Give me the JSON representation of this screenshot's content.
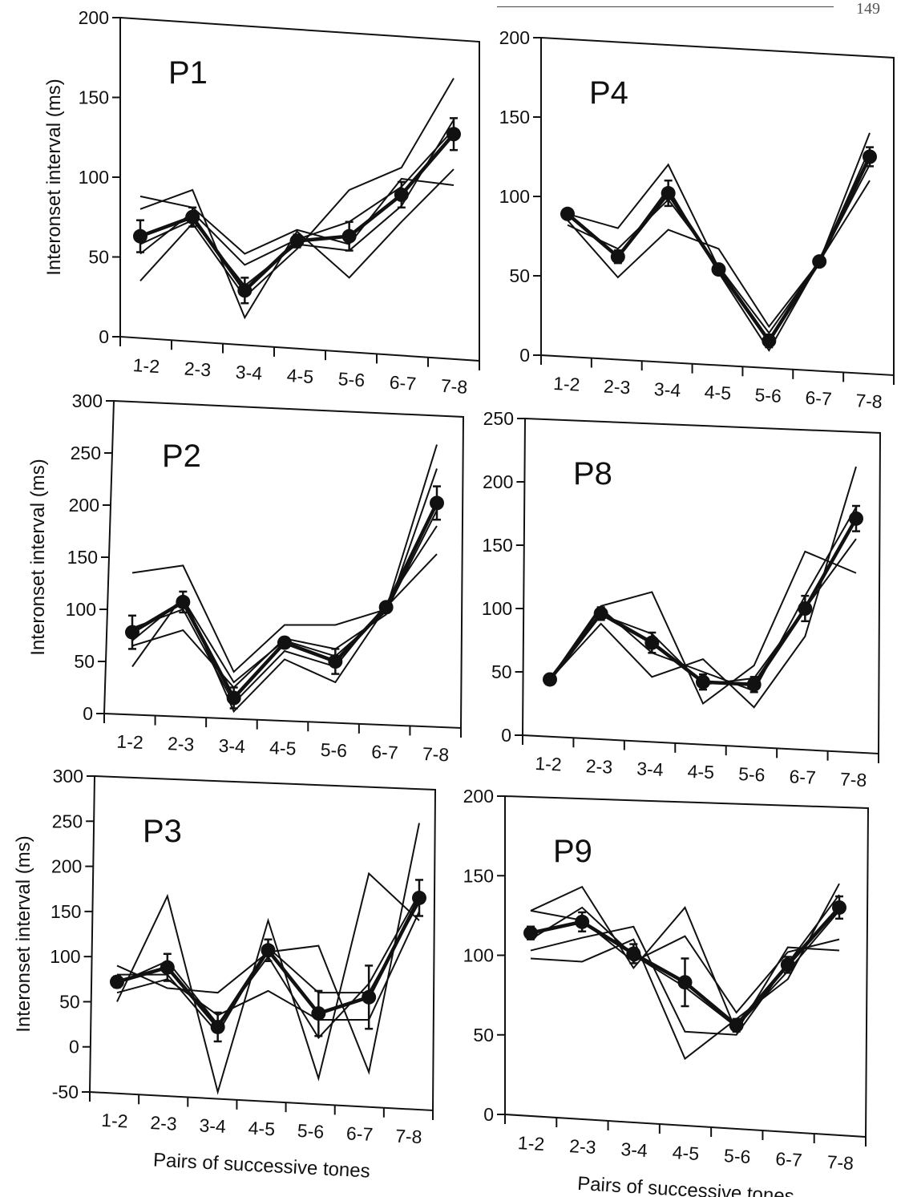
{
  "page_number": "149",
  "colors": {
    "ink": "#111111",
    "background": "#ffffff"
  },
  "chart_data": [
    {
      "type": "line",
      "panel": "P1",
      "ylabel": "Interonset interval (ms)",
      "xlabel": "",
      "categories": [
        "1-2",
        "2-3",
        "3-4",
        "4-5",
        "5-6",
        "6-7",
        "7-8"
      ],
      "ylim": [
        0,
        200
      ],
      "yticks": [
        0,
        50,
        100,
        150,
        200
      ],
      "mean": [
        63,
        75,
        29,
        60,
        63,
        89,
        127
      ],
      "error": [
        10,
        6,
        8,
        4,
        9,
        8,
        10
      ],
      "series": [
        {
          "values": [
            88,
            81,
            52,
            67,
            58,
            99,
            95
          ]
        },
        {
          "values": [
            80,
            92,
            12,
            66,
            37,
            72,
            105
          ]
        },
        {
          "values": [
            52,
            78,
            45,
            61,
            72,
            94,
            130
          ]
        },
        {
          "values": [
            35,
            71,
            25,
            55,
            92,
            106,
            162
          ]
        },
        {
          "values": [
            58,
            73,
            32,
            58,
            54,
            82,
            136
          ]
        }
      ]
    },
    {
      "type": "line",
      "panel": "P4",
      "ylabel": "",
      "xlabel": "",
      "categories": [
        "1-2",
        "2-3",
        "3-4",
        "4-5",
        "5-6",
        "6-7",
        "7-8"
      ],
      "ylim": [
        0,
        200
      ],
      "yticks": [
        0,
        50,
        100,
        150,
        200
      ],
      "mean": [
        89,
        62,
        102,
        54,
        9,
        59,
        125
      ],
      "error": [
        2,
        4,
        8,
        3,
        4,
        2,
        6
      ],
      "series": [
        {
          "values": [
            89,
            80,
            120,
            55,
            10,
            59,
            140
          ]
        },
        {
          "values": [
            85,
            49,
            79,
            67,
            18,
            59,
            110
          ]
        },
        {
          "values": [
            89,
            62,
            105,
            52,
            3,
            59,
            130
          ]
        },
        {
          "values": [
            82,
            67,
            98,
            56,
            14,
            59,
            120
          ]
        }
      ]
    },
    {
      "type": "line",
      "panel": "P2",
      "ylabel": "Interonset interval (ms)",
      "xlabel": "",
      "categories": [
        "1-2",
        "2-3",
        "3-4",
        "4-5",
        "5-6",
        "6-7",
        "7-8"
      ],
      "ylim": [
        0,
        300
      ],
      "yticks": [
        0,
        50,
        100,
        150,
        200,
        250,
        300
      ],
      "mean": [
        78,
        107,
        15,
        68,
        50,
        102,
        202
      ],
      "error": [
        16,
        10,
        10,
        5,
        12,
        5,
        16
      ],
      "series": [
        {
          "values": [
            135,
            142,
            40,
            85,
            85,
            100,
            258
          ]
        },
        {
          "values": [
            45,
            113,
            2,
            52,
            30,
            102,
            153
          ]
        },
        {
          "values": [
            65,
            80,
            25,
            72,
            62,
            95,
            235
          ]
        },
        {
          "values": [
            82,
            100,
            10,
            60,
            45,
            105,
            180
          ]
        },
        {
          "values": [
            70,
            110,
            30,
            70,
            55,
            98,
            195
          ]
        }
      ]
    },
    {
      "type": "line",
      "panel": "P8",
      "ylabel": "",
      "xlabel": "",
      "categories": [
        "1-2",
        "2-3",
        "3-4",
        "4-5",
        "5-6",
        "6-7",
        "7-8"
      ],
      "ylim": [
        0,
        250
      ],
      "yticks": [
        0,
        50,
        100,
        150,
        200,
        250
      ],
      "mean": [
        44,
        96,
        73,
        42,
        40,
        100,
        171
      ],
      "error": [
        2,
        5,
        8,
        6,
        6,
        10,
        10
      ],
      "series": [
        {
          "values": [
            44,
            102,
            113,
            25,
            55,
            145,
            128
          ]
        },
        {
          "values": [
            44,
            88,
            46,
            60,
            22,
            78,
            212
          ]
        },
        {
          "values": [
            44,
            95,
            80,
            40,
            45,
            100,
            155
          ]
        },
        {
          "values": [
            44,
            100,
            65,
            50,
            35,
            110,
            180
          ]
        }
      ]
    },
    {
      "type": "line",
      "panel": "P3",
      "ylabel": "Interonset interval (ms)",
      "xlabel": "Pairs of successive tones",
      "categories": [
        "1-2",
        "2-3",
        "3-4",
        "4-5",
        "5-6",
        "6-7",
        "7-8"
      ],
      "ylim": [
        -50,
        300
      ],
      "yticks": [
        -50,
        0,
        50,
        100,
        150,
        200,
        250,
        300
      ],
      "mean": [
        72,
        88,
        22,
        107,
        37,
        55,
        165
      ],
      "error": [
        6,
        15,
        16,
        12,
        25,
        35,
        20
      ],
      "series": [
        {
          "values": [
            90,
            65,
            60,
            105,
            112,
            -28,
            248
          ]
        },
        {
          "values": [
            50,
            167,
            -55,
            140,
            -35,
            192,
            140
          ]
        },
        {
          "values": [
            60,
            75,
            35,
            62,
            30,
            30,
            150
          ]
        },
        {
          "values": [
            80,
            80,
            15,
            110,
            60,
            60,
            160
          ]
        },
        {
          "values": [
            70,
            95,
            25,
            100,
            10,
            70,
            170
          ]
        }
      ]
    },
    {
      "type": "line",
      "panel": "P9",
      "ylabel": "",
      "xlabel": "Pairs of successive tones",
      "categories": [
        "1-2",
        "2-3",
        "3-4",
        "4-5",
        "5-6",
        "6-7",
        "7-8"
      ],
      "ylim": [
        0,
        200
      ],
      "yticks": [
        0,
        50,
        100,
        150,
        200
      ],
      "mean": [
        114,
        121,
        101,
        83,
        56,
        94,
        130
      ],
      "error": [
        4,
        6,
        6,
        15,
        4,
        5,
        7
      ],
      "series": [
        {
          "values": [
            128,
            143,
            92,
            130,
            52,
            105,
            103
          ]
        },
        {
          "values": [
            98,
            96,
            110,
            35,
            60,
            85,
            145
          ]
        },
        {
          "values": [
            103,
            111,
            118,
            52,
            50,
            95,
            138
          ]
        },
        {
          "values": [
            128,
            122,
            96,
            112,
            64,
            102,
            110
          ]
        },
        {
          "values": [
            110,
            130,
            100,
            80,
            55,
            90,
            128
          ]
        }
      ]
    }
  ]
}
